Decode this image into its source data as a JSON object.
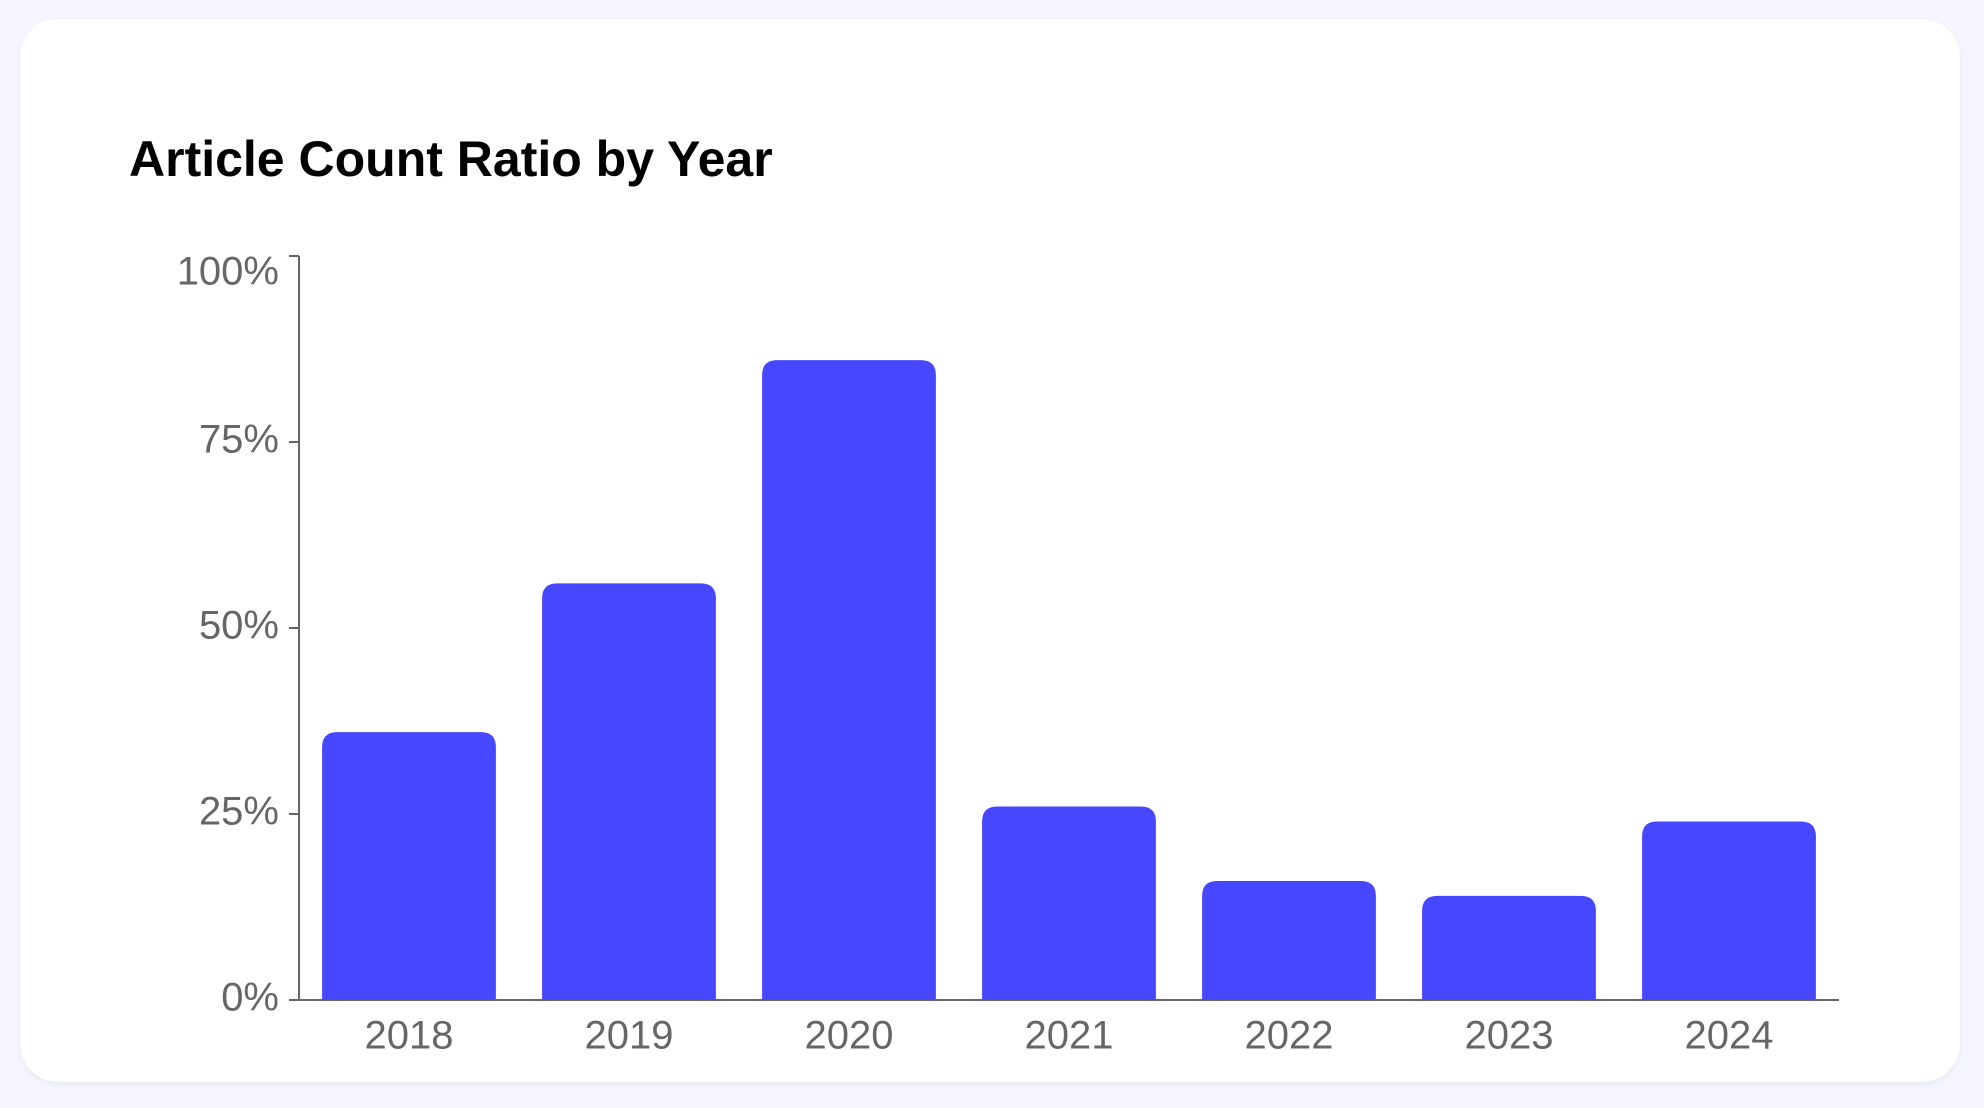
{
  "chart_data": {
    "type": "bar",
    "title": "Article Count Ratio by Year",
    "categories": [
      "2018",
      "2019",
      "2020",
      "2021",
      "2022",
      "2023",
      "2024"
    ],
    "values": [
      36,
      56,
      86,
      26,
      16,
      14,
      24
    ],
    "color": "#4747ff",
    "ylim": [
      0,
      100
    ],
    "yticks": [
      {
        "value": 0,
        "label": "0%"
      },
      {
        "value": 25,
        "label": "25%"
      },
      {
        "value": 50,
        "label": "50%"
      },
      {
        "value": 75,
        "label": "75%"
      },
      {
        "value": 100,
        "label": "100%"
      }
    ],
    "grid": false
  }
}
